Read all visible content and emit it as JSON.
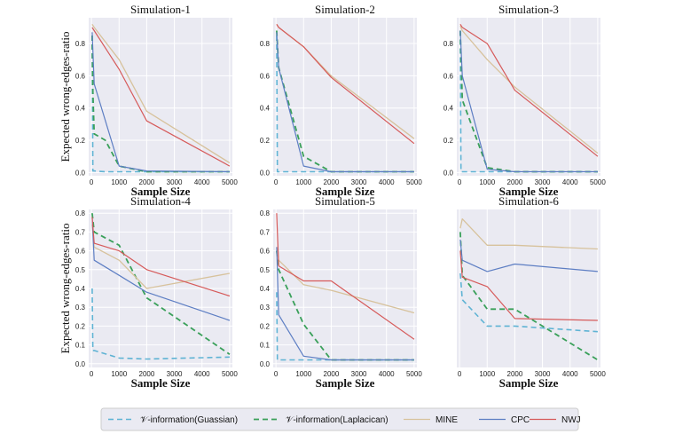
{
  "chart_data": {
    "type": "line",
    "shared_xlabel": "Sample Size",
    "shared_ylabel": "Expected wrong-edges-ratio",
    "legend_position": "bottom",
    "series_styles": [
      {
        "name": "𝒱-information(Guassian)",
        "color": "#5fb3d4",
        "dash": "6,4",
        "width": 1.6
      },
      {
        "name": "𝒱-information(Laplacican)",
        "color": "#3aa05a",
        "dash": "6,4",
        "width": 1.8
      },
      {
        "name": "MINE",
        "color": "#d7c29c",
        "dash": "",
        "width": 1.3
      },
      {
        "name": "CPC",
        "color": "#5d7ec3",
        "dash": "",
        "width": 1.2
      },
      {
        "name": "NWJ",
        "color": "#d65a5a",
        "dash": "",
        "width": 1.2
      }
    ],
    "panels": [
      {
        "title": "Simulation-1",
        "xlim": [
          -100,
          5100
        ],
        "ylim": [
          -0.02,
          0.96
        ],
        "xticks": [
          0,
          1000,
          2000,
          3000,
          4000,
          5000
        ],
        "yticks": [
          0.0,
          0.2,
          0.4,
          0.6,
          0.8
        ],
        "series": [
          {
            "name": "𝒱-information(Guassian)",
            "x": [
              25,
              50,
              100,
              500,
              1000,
              2000,
              5000
            ],
            "y": [
              0.85,
              0.01,
              0.01,
              0.005,
              0.005,
              0.005,
              0.005
            ]
          },
          {
            "name": "𝒱-information(Laplacican)",
            "x": [
              25,
              50,
              100,
              500,
              1000,
              2000,
              5000
            ],
            "y": [
              0.85,
              0.5,
              0.24,
              0.2,
              0.04,
              0.005,
              0.005
            ]
          },
          {
            "name": "MINE",
            "x": [
              25,
              100,
              1000,
              2000,
              5000
            ],
            "y": [
              0.92,
              0.9,
              0.7,
              0.38,
              0.06
            ]
          },
          {
            "name": "CPC",
            "x": [
              25,
              100,
              1000,
              2000,
              5000
            ],
            "y": [
              0.87,
              0.55,
              0.04,
              0.01,
              0.005
            ]
          },
          {
            "name": "NWJ",
            "x": [
              25,
              100,
              1000,
              2000,
              5000
            ],
            "y": [
              0.9,
              0.88,
              0.64,
              0.32,
              0.04
            ]
          }
        ]
      },
      {
        "title": "Simulation-2",
        "xlim": [
          -100,
          5100
        ],
        "ylim": [
          -0.02,
          0.96
        ],
        "xticks": [
          0,
          1000,
          2000,
          3000,
          4000,
          5000
        ],
        "yticks": [
          0.0,
          0.2,
          0.4,
          0.6,
          0.8
        ],
        "series": [
          {
            "name": "𝒱-information(Guassian)",
            "x": [
              25,
              50,
              100,
              1000,
              2000,
              5000
            ],
            "y": [
              0.85,
              0.005,
              0.005,
              0.005,
              0.005,
              0.005
            ]
          },
          {
            "name": "𝒱-information(Laplacican)",
            "x": [
              25,
              100,
              1000,
              2000,
              5000
            ],
            "y": [
              0.88,
              0.65,
              0.1,
              0.005,
              0.005
            ]
          },
          {
            "name": "MINE",
            "x": [
              25,
              100,
              1000,
              2000,
              5000
            ],
            "y": [
              0.92,
              0.9,
              0.78,
              0.6,
              0.21
            ]
          },
          {
            "name": "CPC",
            "x": [
              25,
              100,
              1000,
              2000,
              5000
            ],
            "y": [
              0.87,
              0.65,
              0.04,
              0.005,
              0.005
            ]
          },
          {
            "name": "NWJ",
            "x": [
              25,
              100,
              1000,
              2000,
              5000
            ],
            "y": [
              0.92,
              0.9,
              0.78,
              0.59,
              0.18
            ]
          }
        ]
      },
      {
        "title": "Simulation-3",
        "xlim": [
          -100,
          5100
        ],
        "ylim": [
          -0.02,
          0.96
        ],
        "xticks": [
          0,
          1000,
          2000,
          3000,
          4000,
          5000
        ],
        "yticks": [
          0.0,
          0.2,
          0.4,
          0.6,
          0.8
        ],
        "series": [
          {
            "name": "𝒱-information(Guassian)",
            "x": [
              25,
              50,
              100,
              1000,
              2000,
              5000
            ],
            "y": [
              0.88,
              0.005,
              0.005,
              0.005,
              0.005,
              0.005
            ]
          },
          {
            "name": "𝒱-information(Laplacican)",
            "x": [
              25,
              100,
              1000,
              2000,
              5000
            ],
            "y": [
              0.88,
              0.45,
              0.03,
              0.005,
              0.005
            ]
          },
          {
            "name": "MINE",
            "x": [
              25,
              100,
              1000,
              2000,
              5000
            ],
            "y": [
              0.91,
              0.88,
              0.7,
              0.53,
              0.12
            ]
          },
          {
            "name": "CPC",
            "x": [
              25,
              100,
              1000,
              2000,
              5000
            ],
            "y": [
              0.88,
              0.6,
              0.02,
              0.005,
              0.005
            ]
          },
          {
            "name": "NWJ",
            "x": [
              25,
              100,
              1000,
              2000,
              5000
            ],
            "y": [
              0.92,
              0.9,
              0.8,
              0.51,
              0.1
            ]
          }
        ]
      },
      {
        "title": "Simulation-4",
        "xlim": [
          -100,
          5100
        ],
        "ylim": [
          -0.02,
          0.82
        ],
        "xticks": [
          0,
          1000,
          2000,
          3000,
          4000,
          5000
        ],
        "yticks": [
          0.0,
          0.1,
          0.2,
          0.3,
          0.4,
          0.5,
          0.6,
          0.7,
          0.8
        ],
        "series": [
          {
            "name": "𝒱-information(Guassian)",
            "x": [
              25,
              50,
              100,
              1000,
              2000,
              5000
            ],
            "y": [
              0.4,
              0.07,
              0.07,
              0.03,
              0.025,
              0.035
            ]
          },
          {
            "name": "𝒱-information(Laplacican)",
            "x": [
              25,
              100,
              1000,
              2000,
              5000
            ],
            "y": [
              0.8,
              0.7,
              0.63,
              0.35,
              0.05
            ]
          },
          {
            "name": "MINE",
            "x": [
              25,
              100,
              1000,
              2000,
              5000
            ],
            "y": [
              0.74,
              0.62,
              0.55,
              0.4,
              0.48
            ]
          },
          {
            "name": "CPC",
            "x": [
              25,
              100,
              1000,
              2000,
              5000
            ],
            "y": [
              0.78,
              0.55,
              0.47,
              0.38,
              0.23
            ]
          },
          {
            "name": "NWJ",
            "x": [
              25,
              100,
              1000,
              2000,
              5000
            ],
            "y": [
              0.78,
              0.64,
              0.6,
              0.5,
              0.36
            ]
          }
        ]
      },
      {
        "title": "Simulation-5",
        "xlim": [
          -100,
          5100
        ],
        "ylim": [
          -0.02,
          0.82
        ],
        "xticks": [
          0,
          1000,
          2000,
          3000,
          4000,
          5000
        ],
        "yticks": [
          0.0,
          0.1,
          0.2,
          0.3,
          0.4,
          0.5,
          0.6,
          0.7,
          0.8
        ],
        "series": [
          {
            "name": "𝒱-information(Guassian)",
            "x": [
              25,
              50,
              100,
              1000,
              2000,
              5000
            ],
            "y": [
              0.38,
              0.02,
              0.02,
              0.02,
              0.02,
              0.02
            ]
          },
          {
            "name": "𝒱-information(Laplacican)",
            "x": [
              25,
              100,
              1000,
              2000,
              5000
            ],
            "y": [
              0.6,
              0.5,
              0.21,
              0.02,
              0.02
            ]
          },
          {
            "name": "MINE",
            "x": [
              25,
              100,
              1000,
              2000,
              5000
            ],
            "y": [
              0.62,
              0.55,
              0.42,
              0.39,
              0.27
            ]
          },
          {
            "name": "CPC",
            "x": [
              25,
              100,
              1000,
              2000,
              5000
            ],
            "y": [
              0.62,
              0.26,
              0.04,
              0.02,
              0.02
            ]
          },
          {
            "name": "NWJ",
            "x": [
              25,
              100,
              1000,
              2000,
              5000
            ],
            "y": [
              0.8,
              0.52,
              0.44,
              0.44,
              0.13
            ]
          }
        ]
      },
      {
        "title": "Simulation-6",
        "xlim": [
          -100,
          5100
        ],
        "ylim": [
          -0.02,
          0.82
        ],
        "xticks": [
          0,
          1000,
          2000,
          3000,
          4000,
          5000
        ],
        "yticks": [],
        "series": [
          {
            "name": "𝒱-information(Guassian)",
            "x": [
              25,
              100,
              1000,
              2000,
              5000
            ],
            "y": [
              0.48,
              0.34,
              0.2,
              0.2,
              0.17
            ]
          },
          {
            "name": "𝒱-information(Laplacican)",
            "x": [
              25,
              100,
              1000,
              2000,
              5000
            ],
            "y": [
              0.7,
              0.47,
              0.29,
              0.29,
              0.02
            ]
          },
          {
            "name": "MINE",
            "x": [
              25,
              100,
              1000,
              2000,
              5000
            ],
            "y": [
              0.72,
              0.77,
              0.63,
              0.63,
              0.61
            ]
          },
          {
            "name": "CPC",
            "x": [
              25,
              100,
              1000,
              2000,
              5000
            ],
            "y": [
              0.66,
              0.55,
              0.49,
              0.53,
              0.49
            ]
          },
          {
            "name": "NWJ",
            "x": [
              25,
              100,
              1000,
              2000,
              5000
            ],
            "y": [
              0.6,
              0.46,
              0.41,
              0.24,
              0.23
            ]
          }
        ]
      }
    ]
  }
}
